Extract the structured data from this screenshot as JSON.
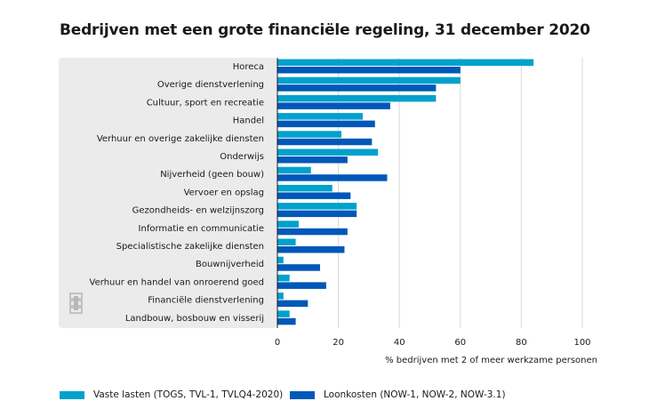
{
  "chart_data": {
    "type": "bar",
    "orientation": "horizontal",
    "title": "Bedrijven met een grote financiële regeling, 31 december 2020",
    "xlabel": "% bedrijven met 2 of meer werkzame personen",
    "ylabel": "",
    "xlim": [
      0,
      100
    ],
    "xticks": [
      0,
      20,
      40,
      60,
      80,
      100
    ],
    "grid": true,
    "legend": "bottom",
    "categories": [
      "Horeca",
      "Overige dienstverlening",
      "Cultuur, sport en recreatie",
      "Handel",
      "Verhuur en overige zakelijke diensten",
      "Onderwijs",
      "Nijverheid (geen bouw)",
      "Vervoer en opslag",
      "Gezondheids- en welzijnszorg",
      "Informatie en communicatie",
      "Specialistische zakelijke diensten",
      "Bouwnijverheid",
      "Verhuur en handel van onroerend goed",
      "Financiële dienstverlening",
      "Landbouw, bosbouw en visserij"
    ],
    "series": [
      {
        "name": "Vaste lasten (TOGS, TVL-1, TVLQ4-2020)",
        "color": "#00a1cd",
        "values": [
          84,
          60,
          52,
          28,
          21,
          33,
          11,
          18,
          26,
          7,
          6,
          2,
          4,
          2,
          4
        ]
      },
      {
        "name": "Loonkosten (NOW-1, NOW-2, NOW-3.1)",
        "color": "#0058b8",
        "values": [
          60,
          52,
          37,
          32,
          31,
          23,
          36,
          24,
          26,
          23,
          22,
          14,
          16,
          10,
          6
        ]
      }
    ]
  },
  "colors": {
    "panel_bg": "#ebebeb",
    "grid": "#d9d9d9",
    "axis": "#1a1a1a"
  },
  "logo_icon": "cbs-logo-icon"
}
